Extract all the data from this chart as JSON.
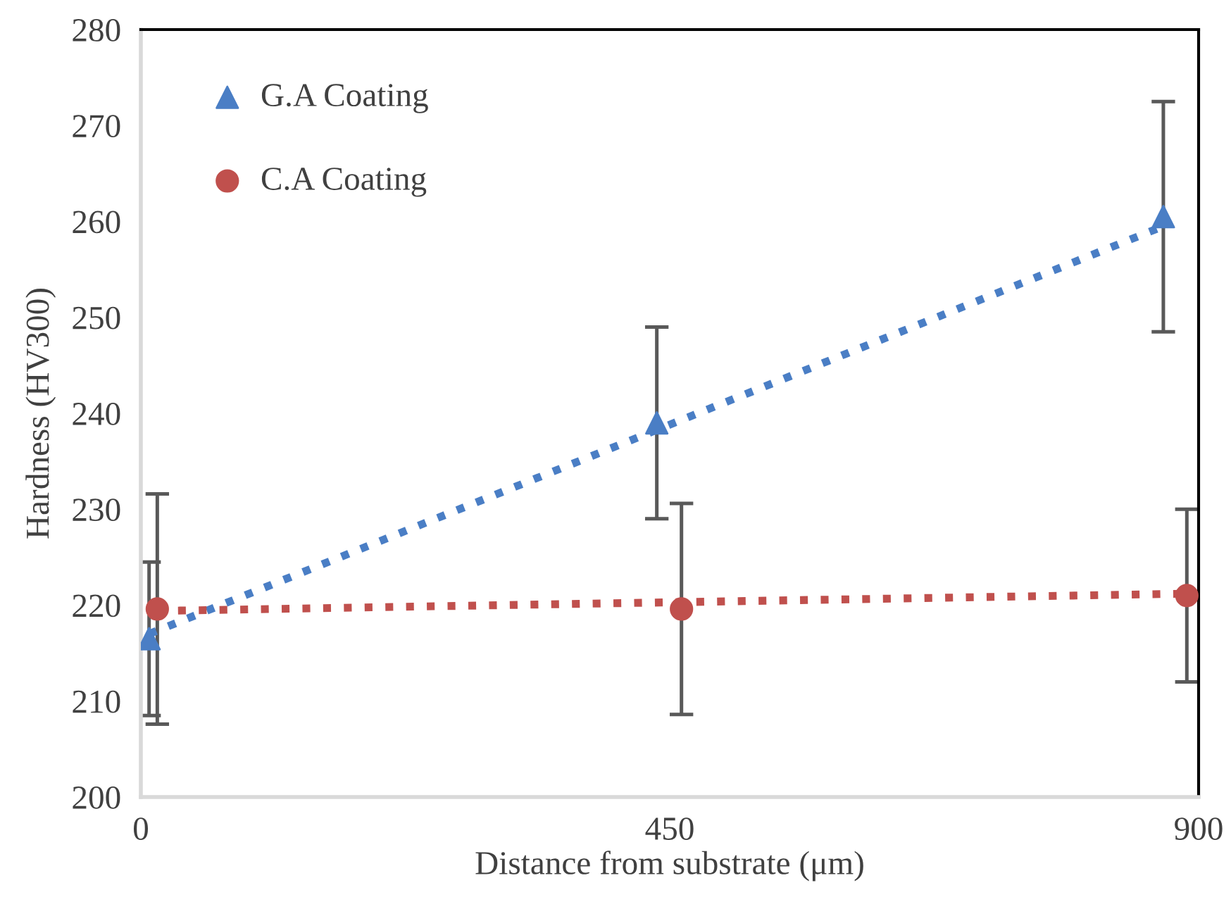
{
  "chart_data": {
    "type": "scatter",
    "xlabel": "Distance from substrate (μm)",
    "ylabel": "Hardness (HV300)",
    "xlim": [
      0,
      900
    ],
    "xticks": [
      0,
      450,
      900
    ],
    "ylim": [
      200,
      280
    ],
    "yticks": [
      200,
      210,
      220,
      230,
      240,
      250,
      260,
      270,
      280
    ],
    "grid": false,
    "legend": "top left",
    "series": [
      {
        "name": "G.A Coating",
        "color": "#4a7ec5",
        "marker": "triangle",
        "x": [
          7,
          439,
          870
        ],
        "values": [
          216.5,
          239,
          260.5
        ],
        "errors": [
          8,
          10,
          12
        ]
      },
      {
        "name": "C.A Coating",
        "color": "#c0504d",
        "marker": "circle",
        "x": [
          14,
          460,
          890
        ],
        "values": [
          219.6,
          219.6,
          221
        ],
        "errors": [
          12,
          11,
          9
        ]
      },
      {
        "type": "line",
        "color": "#4a7ec5",
        "line_style": "dotted",
        "marker": "none",
        "x": [
          7,
          870
        ],
        "values": [
          217,
          259.5
        ]
      },
      {
        "type": "line",
        "color": "#c0504d",
        "line_style": "dotted",
        "marker": "none",
        "x": [
          14,
          890
        ],
        "values": [
          219.4,
          221.2
        ]
      }
    ]
  }
}
